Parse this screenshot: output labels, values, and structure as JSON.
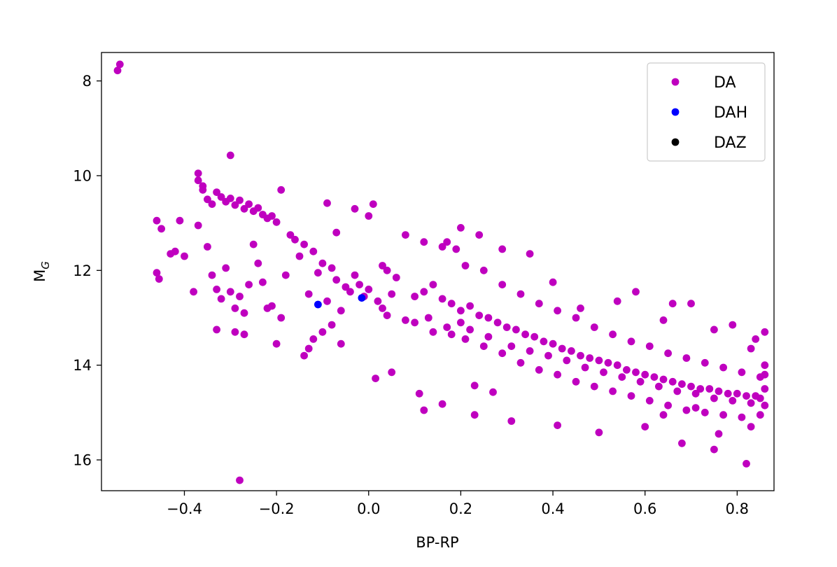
{
  "chart_data": {
    "type": "scatter",
    "title": "",
    "xlabel": "BP-RP",
    "ylabel": "M",
    "ylabel_subscript": "G",
    "xlim": [
      -0.58,
      0.88
    ],
    "ylim": [
      16.65,
      7.4
    ],
    "y_inverted": true,
    "grid": false,
    "legend_position": "top-right",
    "x_ticks": [
      -0.4,
      -0.2,
      0.0,
      0.2,
      0.4,
      0.6,
      0.8
    ],
    "x_tick_labels": [
      "−0.4",
      "−0.2",
      "0.0",
      "0.2",
      "0.4",
      "0.6",
      "0.8"
    ],
    "y_ticks": [
      8,
      10,
      12,
      14,
      16
    ],
    "y_tick_labels": [
      "8",
      "10",
      "12",
      "14",
      "16"
    ],
    "series": [
      {
        "name": "DA",
        "color": "#bf00bf",
        "description_sequence_trend": "dense band falling from about (-0.35, 10.3) to (0.85, 14.5)",
        "points": [
          [
            -0.54,
            7.65
          ],
          [
            -0.545,
            7.78
          ],
          [
            -0.3,
            9.57
          ],
          [
            -0.28,
            16.43
          ],
          [
            -0.37,
            9.95
          ],
          [
            -0.37,
            10.1
          ],
          [
            -0.36,
            10.22
          ],
          [
            -0.36,
            10.3
          ],
          [
            -0.35,
            10.5
          ],
          [
            -0.34,
            10.6
          ],
          [
            -0.33,
            10.35
          ],
          [
            -0.32,
            10.45
          ],
          [
            -0.31,
            10.55
          ],
          [
            -0.3,
            10.48
          ],
          [
            -0.29,
            10.62
          ],
          [
            -0.28,
            10.52
          ],
          [
            -0.27,
            10.7
          ],
          [
            -0.26,
            10.6
          ],
          [
            -0.25,
            10.75
          ],
          [
            -0.24,
            10.68
          ],
          [
            -0.23,
            10.82
          ],
          [
            -0.22,
            10.9
          ],
          [
            -0.21,
            10.85
          ],
          [
            -0.2,
            10.98
          ],
          [
            -0.19,
            10.3
          ],
          [
            -0.46,
            10.95
          ],
          [
            -0.45,
            11.12
          ],
          [
            -0.43,
            11.65
          ],
          [
            -0.42,
            11.6
          ],
          [
            -0.41,
            10.95
          ],
          [
            -0.46,
            12.05
          ],
          [
            -0.455,
            12.18
          ],
          [
            -0.4,
            11.7
          ],
          [
            -0.38,
            12.45
          ],
          [
            -0.37,
            11.05
          ],
          [
            -0.35,
            11.5
          ],
          [
            -0.34,
            12.1
          ],
          [
            -0.33,
            12.4
          ],
          [
            -0.32,
            12.6
          ],
          [
            -0.31,
            11.95
          ],
          [
            -0.3,
            12.45
          ],
          [
            -0.29,
            12.8
          ],
          [
            -0.28,
            12.55
          ],
          [
            -0.27,
            12.9
          ],
          [
            -0.26,
            12.3
          ],
          [
            -0.25,
            11.45
          ],
          [
            -0.24,
            11.85
          ],
          [
            -0.23,
            12.25
          ],
          [
            -0.22,
            12.8
          ],
          [
            -0.21,
            12.75
          ],
          [
            -0.2,
            13.55
          ],
          [
            -0.19,
            13.0
          ],
          [
            -0.18,
            12.1
          ],
          [
            -0.17,
            11.25
          ],
          [
            -0.16,
            11.35
          ],
          [
            -0.15,
            11.7
          ],
          [
            -0.14,
            11.45
          ],
          [
            -0.13,
            12.5
          ],
          [
            -0.12,
            11.6
          ],
          [
            -0.11,
            12.05
          ],
          [
            -0.1,
            11.85
          ],
          [
            -0.09,
            12.65
          ],
          [
            -0.08,
            11.95
          ],
          [
            -0.07,
            12.2
          ],
          [
            -0.06,
            12.85
          ],
          [
            -0.05,
            12.35
          ],
          [
            -0.04,
            12.45
          ],
          [
            -0.03,
            12.1
          ],
          [
            -0.02,
            12.3
          ],
          [
            -0.01,
            12.55
          ],
          [
            0.0,
            12.4
          ],
          [
            0.01,
            10.6
          ],
          [
            0.02,
            12.65
          ],
          [
            0.03,
            12.8
          ],
          [
            0.04,
            12.95
          ],
          [
            0.05,
            12.5
          ],
          [
            -0.09,
            10.58
          ],
          [
            -0.07,
            11.2
          ],
          [
            -0.03,
            10.7
          ],
          [
            0.0,
            10.85
          ],
          [
            -0.14,
            13.8
          ],
          [
            -0.12,
            13.45
          ],
          [
            -0.1,
            13.3
          ],
          [
            -0.08,
            13.15
          ],
          [
            -0.06,
            13.55
          ],
          [
            -0.13,
            13.65
          ],
          [
            -0.29,
            13.3
          ],
          [
            -0.27,
            13.35
          ],
          [
            -0.33,
            13.25
          ],
          [
            0.015,
            14.28
          ],
          [
            0.05,
            14.15
          ],
          [
            0.12,
            14.95
          ],
          [
            0.16,
            14.82
          ],
          [
            0.23,
            14.43
          ],
          [
            0.27,
            14.57
          ],
          [
            0.23,
            15.05
          ],
          [
            0.31,
            15.18
          ],
          [
            0.11,
            14.6
          ],
          [
            0.41,
            15.27
          ],
          [
            0.5,
            15.42
          ],
          [
            0.1,
            12.55
          ],
          [
            0.12,
            12.45
          ],
          [
            0.14,
            12.3
          ],
          [
            0.16,
            12.6
          ],
          [
            0.18,
            12.7
          ],
          [
            0.2,
            12.85
          ],
          [
            0.22,
            12.75
          ],
          [
            0.24,
            12.95
          ],
          [
            0.26,
            13.0
          ],
          [
            0.28,
            13.1
          ],
          [
            0.3,
            13.2
          ],
          [
            0.32,
            13.25
          ],
          [
            0.34,
            13.35
          ],
          [
            0.36,
            13.4
          ],
          [
            0.38,
            13.5
          ],
          [
            0.4,
            13.55
          ],
          [
            0.42,
            13.65
          ],
          [
            0.44,
            13.7
          ],
          [
            0.46,
            13.8
          ],
          [
            0.48,
            13.85
          ],
          [
            0.5,
            13.9
          ],
          [
            0.52,
            13.95
          ],
          [
            0.54,
            14.0
          ],
          [
            0.56,
            14.1
          ],
          [
            0.58,
            14.15
          ],
          [
            0.6,
            14.2
          ],
          [
            0.62,
            14.25
          ],
          [
            0.64,
            14.3
          ],
          [
            0.66,
            14.35
          ],
          [
            0.68,
            14.4
          ],
          [
            0.7,
            14.45
          ],
          [
            0.72,
            14.5
          ],
          [
            0.74,
            14.5
          ],
          [
            0.76,
            14.55
          ],
          [
            0.78,
            14.6
          ],
          [
            0.8,
            14.6
          ],
          [
            0.82,
            14.65
          ],
          [
            0.84,
            14.65
          ],
          [
            0.85,
            14.7
          ],
          [
            0.86,
            14.5
          ],
          [
            0.12,
            11.4
          ],
          [
            0.16,
            11.5
          ],
          [
            0.19,
            11.55
          ],
          [
            0.21,
            11.9
          ],
          [
            0.25,
            12.0
          ],
          [
            0.29,
            12.3
          ],
          [
            0.33,
            12.5
          ],
          [
            0.37,
            12.7
          ],
          [
            0.41,
            12.85
          ],
          [
            0.45,
            13.0
          ],
          [
            0.49,
            13.2
          ],
          [
            0.53,
            13.35
          ],
          [
            0.57,
            13.5
          ],
          [
            0.61,
            13.6
          ],
          [
            0.65,
            13.75
          ],
          [
            0.69,
            13.85
          ],
          [
            0.73,
            13.95
          ],
          [
            0.77,
            14.05
          ],
          [
            0.81,
            14.15
          ],
          [
            0.85,
            14.25
          ],
          [
            0.13,
            13.0
          ],
          [
            0.17,
            13.2
          ],
          [
            0.21,
            13.45
          ],
          [
            0.25,
            13.6
          ],
          [
            0.29,
            13.75
          ],
          [
            0.33,
            13.95
          ],
          [
            0.37,
            14.1
          ],
          [
            0.41,
            14.2
          ],
          [
            0.45,
            14.35
          ],
          [
            0.49,
            14.45
          ],
          [
            0.53,
            14.55
          ],
          [
            0.57,
            14.65
          ],
          [
            0.61,
            14.75
          ],
          [
            0.65,
            14.85
          ],
          [
            0.69,
            14.95
          ],
          [
            0.73,
            15.0
          ],
          [
            0.77,
            15.05
          ],
          [
            0.81,
            15.1
          ],
          [
            0.85,
            15.05
          ],
          [
            0.83,
            15.3
          ],
          [
            0.82,
            16.08
          ],
          [
            0.75,
            15.78
          ],
          [
            0.76,
            15.45
          ],
          [
            0.68,
            15.65
          ],
          [
            0.6,
            15.3
          ],
          [
            0.64,
            15.05
          ],
          [
            0.71,
            14.9
          ],
          [
            0.86,
            13.3
          ],
          [
            0.84,
            13.45
          ],
          [
            0.83,
            13.65
          ],
          [
            0.79,
            13.15
          ],
          [
            0.75,
            13.25
          ],
          [
            0.7,
            12.7
          ],
          [
            0.66,
            12.7
          ],
          [
            0.64,
            13.05
          ],
          [
            0.58,
            12.45
          ],
          [
            0.54,
            12.65
          ],
          [
            0.46,
            12.8
          ],
          [
            0.4,
            12.25
          ],
          [
            0.35,
            11.65
          ],
          [
            0.29,
            11.55
          ],
          [
            0.24,
            11.25
          ],
          [
            0.2,
            11.1
          ],
          [
            0.17,
            11.4
          ],
          [
            0.08,
            11.25
          ],
          [
            0.06,
            12.15
          ],
          [
            0.04,
            12.0
          ],
          [
            0.03,
            11.9
          ],
          [
            0.08,
            13.05
          ],
          [
            0.1,
            13.1
          ],
          [
            0.14,
            13.3
          ],
          [
            0.18,
            13.35
          ],
          [
            0.2,
            13.1
          ],
          [
            0.22,
            13.25
          ],
          [
            0.26,
            13.4
          ],
          [
            0.31,
            13.6
          ],
          [
            0.35,
            13.7
          ],
          [
            0.39,
            13.8
          ],
          [
            0.43,
            13.9
          ],
          [
            0.47,
            14.05
          ],
          [
            0.51,
            14.15
          ],
          [
            0.55,
            14.25
          ],
          [
            0.59,
            14.35
          ],
          [
            0.63,
            14.45
          ],
          [
            0.67,
            14.55
          ],
          [
            0.71,
            14.6
          ],
          [
            0.75,
            14.7
          ],
          [
            0.79,
            14.75
          ],
          [
            0.83,
            14.8
          ],
          [
            0.86,
            14.85
          ],
          [
            0.86,
            14.2
          ],
          [
            0.86,
            14.0
          ]
        ]
      },
      {
        "name": "DAH",
        "color": "#0000ff",
        "points": [
          [
            -0.11,
            12.72
          ],
          [
            -0.015,
            12.58
          ]
        ]
      },
      {
        "name": "DAZ",
        "color": "#000000",
        "points": []
      }
    ]
  }
}
